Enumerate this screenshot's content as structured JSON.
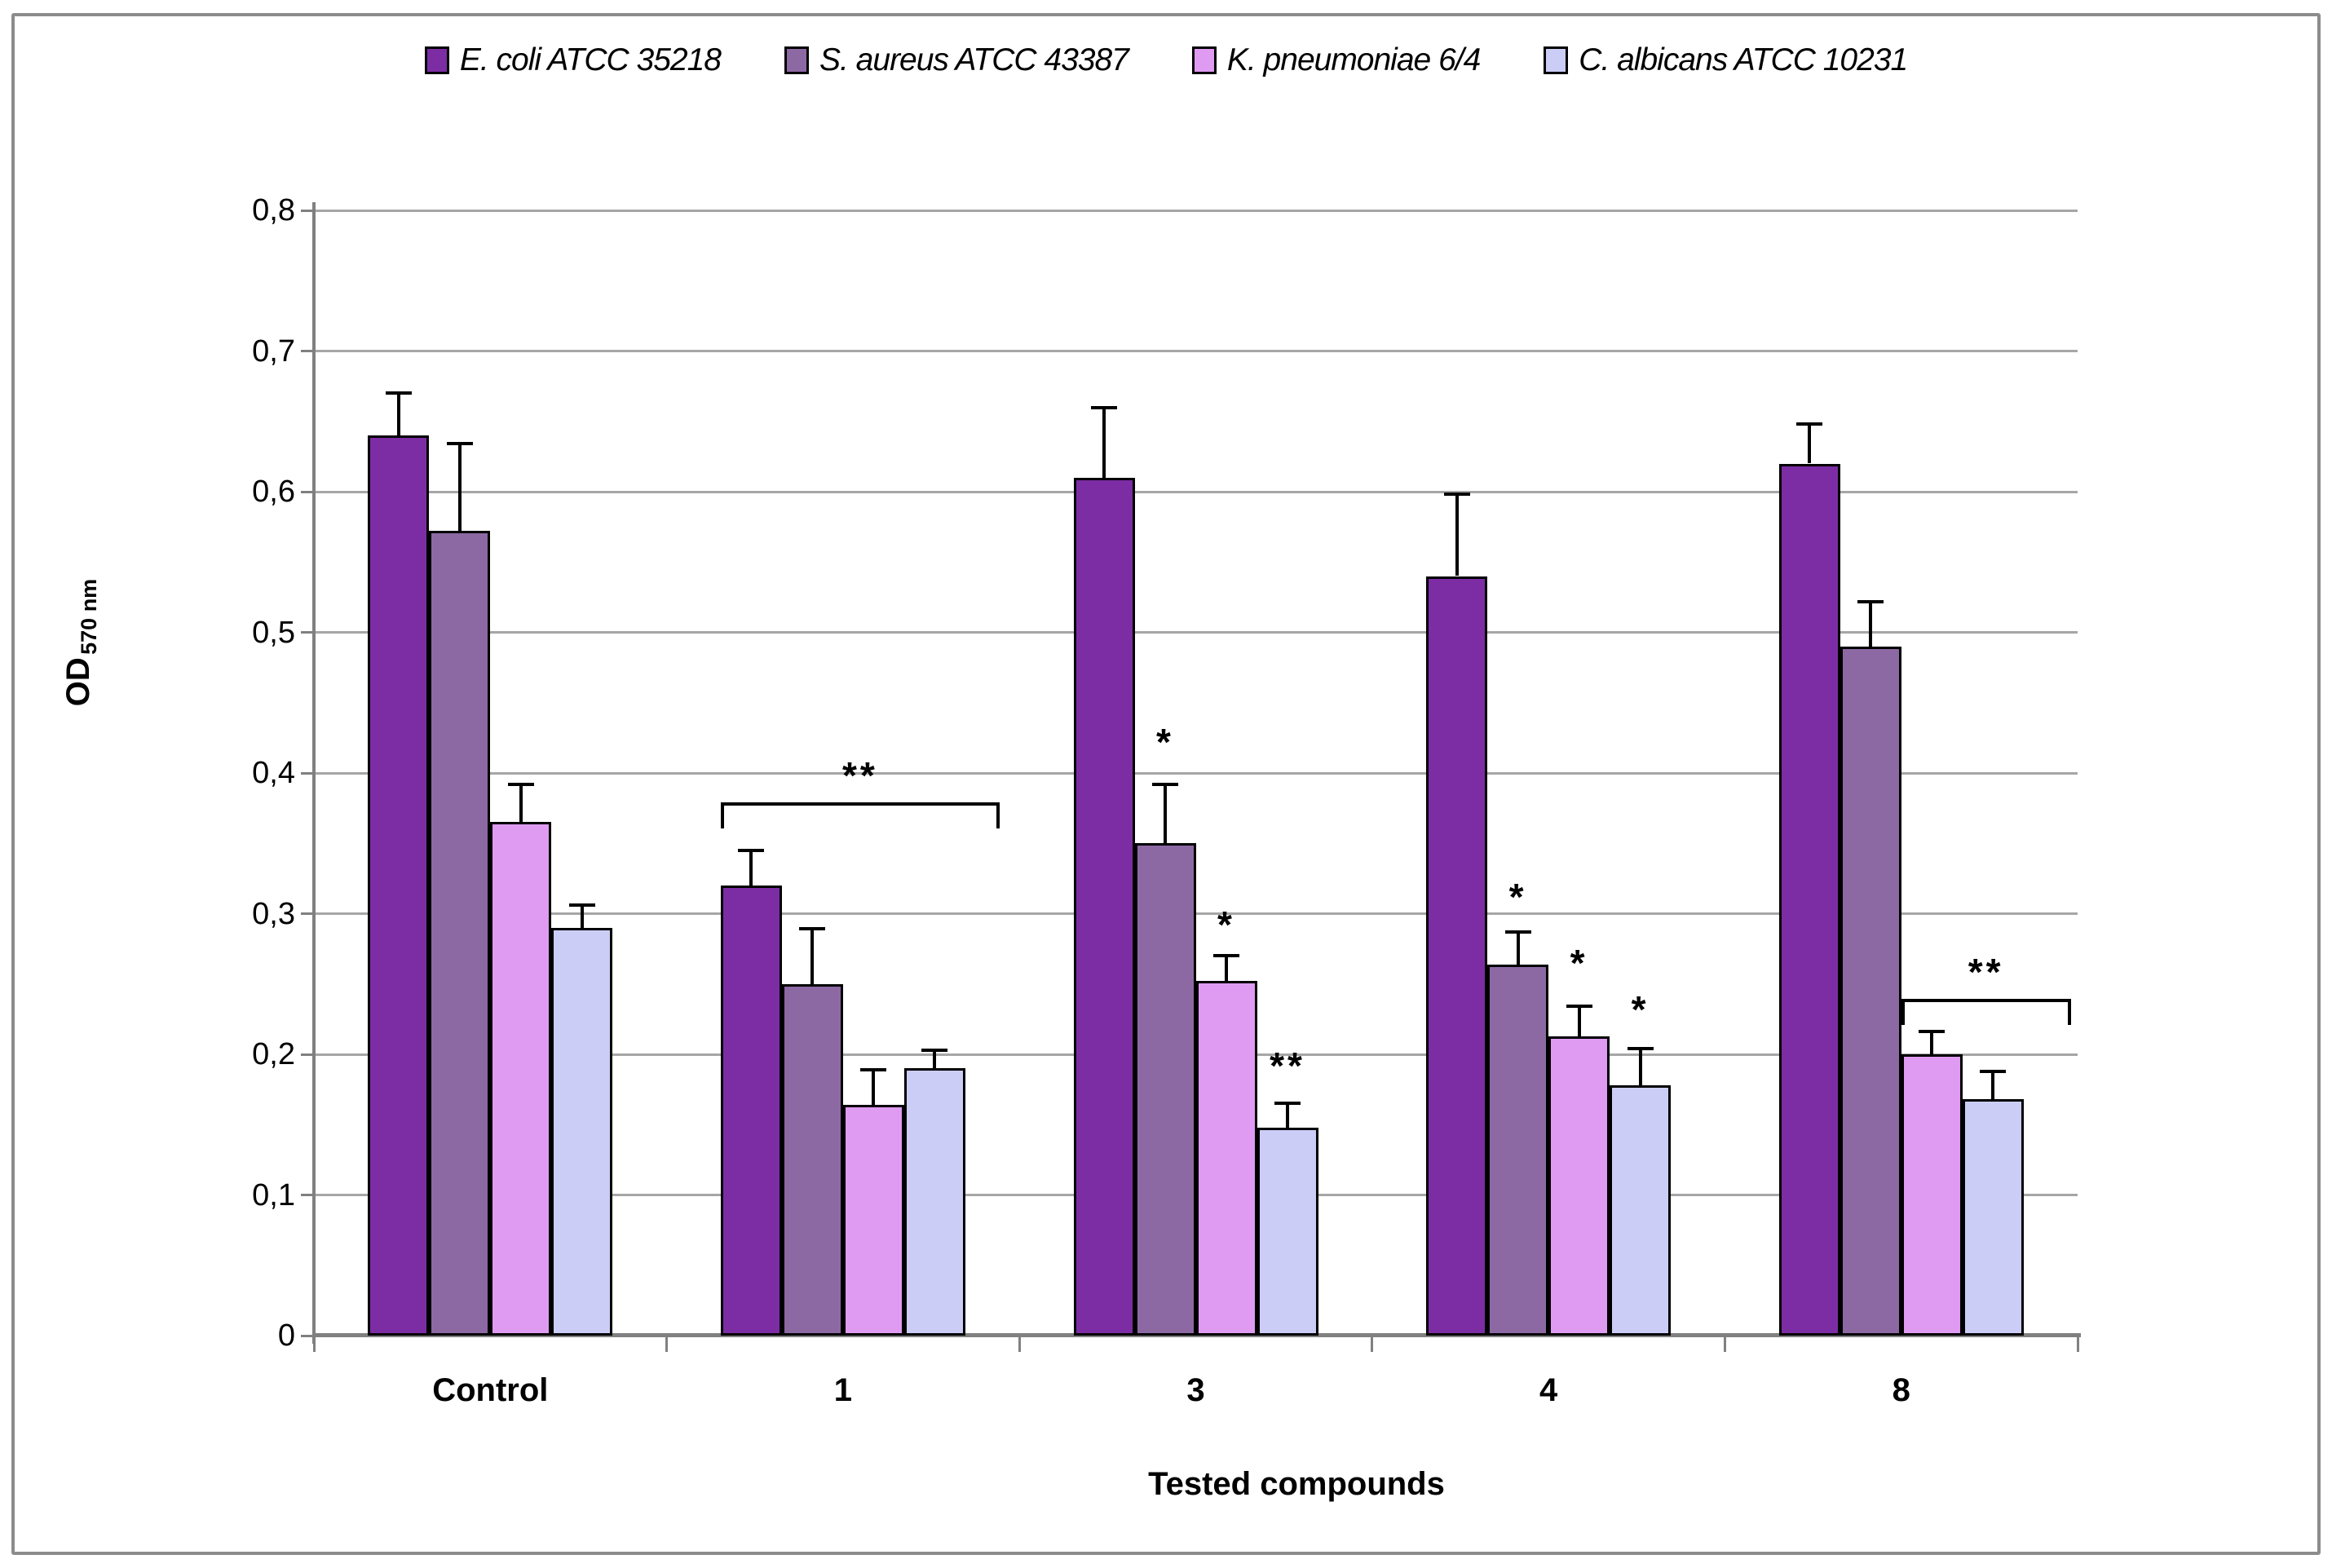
{
  "chart_data": {
    "type": "bar",
    "title": "",
    "xlabel": "Tested compounds",
    "ylabel_main": "OD",
    "ylabel_sub": "570 nm",
    "categories": [
      "Control",
      "1",
      "3",
      "4",
      "8"
    ],
    "y_axis": {
      "min": 0,
      "max": 0.8,
      "step": 0.1,
      "tick_labels": [
        "0",
        "0,1",
        "0,2",
        "0,3",
        "0,4",
        "0,5",
        "0,6",
        "0,7",
        "0,8"
      ],
      "decimal_separator": "comma"
    },
    "grid": true,
    "legend_position": "top",
    "series": [
      {
        "name": "E. coli ATCC 35218",
        "color": "#7c2da4",
        "values": [
          0.64,
          0.32,
          0.61,
          0.54,
          0.62
        ],
        "errors_up": [
          0.03,
          0.025,
          0.05,
          0.058,
          0.028
        ]
      },
      {
        "name": "S. aureus ATCC 43387",
        "color": "#8d69a4",
        "values": [
          0.572,
          0.25,
          0.35,
          0.264,
          0.49
        ],
        "errors_up": [
          0.062,
          0.039,
          0.042,
          0.023,
          0.032
        ]
      },
      {
        "name": "K. pneumoniae 6/4",
        "color": "#df9bf2",
        "values": [
          0.365,
          0.164,
          0.252,
          0.213,
          0.2
        ],
        "errors_up": [
          0.027,
          0.025,
          0.018,
          0.021,
          0.016
        ]
      },
      {
        "name": "C. albicans ATCC 10231",
        "color": "#cbcdf6",
        "values": [
          0.29,
          0.19,
          0.148,
          0.178,
          0.168
        ],
        "errors_up": [
          0.016,
          0.013,
          0.017,
          0.026,
          0.02
        ]
      }
    ],
    "annotations": {
      "stars": [
        {
          "category": "3",
          "series_index": 1,
          "label": "*",
          "od": 0.425
        },
        {
          "category": "3",
          "series_index": 2,
          "label": "*",
          "od": 0.295
        },
        {
          "category": "3",
          "series_index": 3,
          "label": "**",
          "od": 0.195
        },
        {
          "category": "4",
          "series_index": 1,
          "label": "*",
          "od": 0.315
        },
        {
          "category": "4",
          "series_index": 2,
          "label": "*",
          "od": 0.268
        },
        {
          "category": "4",
          "series_index": 3,
          "label": "*",
          "od": 0.235
        }
      ],
      "brackets": [
        {
          "category": "1",
          "label": "**",
          "od": 0.378,
          "span": "group"
        },
        {
          "category": "8",
          "label": "**",
          "od": 0.238,
          "span": "series",
          "from_index": 2,
          "to_index": 3
        }
      ]
    }
  }
}
